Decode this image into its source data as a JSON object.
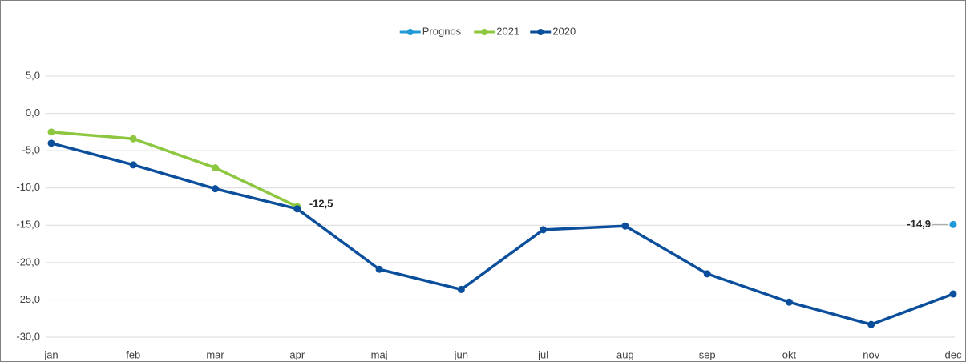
{
  "chart_data": {
    "type": "line",
    "categories": [
      "jan",
      "feb",
      "mar",
      "apr",
      "maj",
      "jun",
      "jul",
      "aug",
      "sep",
      "okt",
      "nov",
      "dec"
    ],
    "series": [
      {
        "name": "Prognos",
        "color": "#1f9ad6",
        "values": [
          null,
          null,
          null,
          null,
          null,
          null,
          null,
          null,
          null,
          null,
          null,
          -14.9
        ],
        "value_labels": [
          null,
          null,
          null,
          null,
          null,
          null,
          null,
          null,
          null,
          null,
          null,
          "-14,9"
        ]
      },
      {
        "name": "2021",
        "color": "#8dc63f",
        "values": [
          -2.5,
          -3.4,
          -7.3,
          -12.5,
          null,
          null,
          null,
          null,
          null,
          null,
          null,
          null
        ],
        "value_labels": [
          null,
          null,
          null,
          "-12,5",
          null,
          null,
          null,
          null,
          null,
          null,
          null,
          null
        ]
      },
      {
        "name": "2020",
        "color": "#0b4f9c",
        "values": [
          -4.0,
          -6.9,
          -10.1,
          -12.8,
          -20.9,
          -23.6,
          -15.6,
          -15.1,
          -21.5,
          -25.3,
          -28.3,
          -24.2
        ]
      }
    ],
    "ylim": [
      -30,
      5
    ],
    "yticks": [
      {
        "value": -30,
        "label": "-30,0"
      },
      {
        "value": -25,
        "label": "-25,0"
      },
      {
        "value": -20,
        "label": "-20,0"
      },
      {
        "value": -15,
        "label": "-15,0"
      },
      {
        "value": -10,
        "label": "-10,0"
      },
      {
        "value": -5,
        "label": "-5,0"
      },
      {
        "value": 0,
        "label": "0,0"
      },
      {
        "value": 5,
        "label": "5,0"
      }
    ],
    "grid": true,
    "legend": "top"
  }
}
